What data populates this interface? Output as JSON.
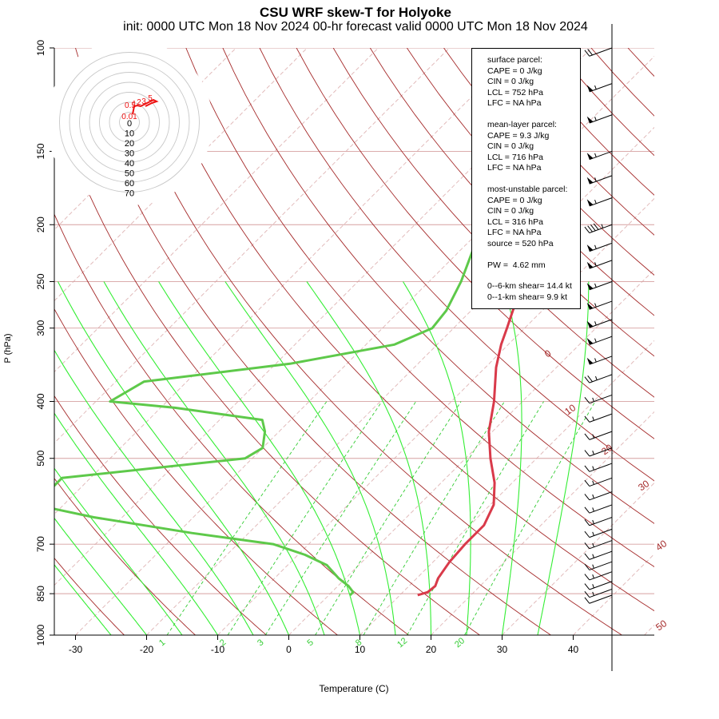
{
  "title": "CSU WRF skew-T for Holyoke",
  "subtitle": "init: 0000 UTC Mon 18 Nov 2024    00-hr forecast valid 0000 UTC Mon 18 Nov 2024",
  "stats": {
    "surface_header": "surface parcel:",
    "surface_cape": "CAPE = 0 J/kg",
    "surface_cin": "CIN = 0 J/kg",
    "surface_lcl": "LCL = 752 hPa",
    "surface_lfc": "LFC = NA hPa",
    "ml_header": "mean-layer parcel:",
    "ml_cape": "CAPE = 9.3 J/kg",
    "ml_cin": "CIN = 0 J/kg",
    "ml_lcl": "LCL = 716 hPa",
    "ml_lfc": "LFC = NA hPa",
    "mu_header": "most-unstable parcel:",
    "mu_cape": "CAPE = 0 J/kg",
    "mu_cin": "CIN = 0 J/kg",
    "mu_lcl": "LCL = 316 hPa",
    "mu_lfc": "LFC = NA hPa",
    "mu_source": "source = 520 hPa",
    "pw": "PW =  4.62 mm",
    "shear6": "0--6-km shear= 14.4 kt",
    "shear1": "0--1-km shear= 9.9 kt"
  },
  "hodograph_ring_labels": [
    "0",
    "10",
    "20",
    "30",
    "40",
    "50",
    "60",
    "70"
  ],
  "hodograph_point_labels": [
    "5",
    "3",
    "2",
    "1",
    "0.5",
    "0.01"
  ],
  "colors": {
    "temperature": "#d93a4a",
    "dewpoint": "#5ec94a",
    "isotherm": "#a52a2a",
    "isobar": "#d6a0a0",
    "dry_adiabat": "#a52a2a",
    "moist_adiabat": "#33ee33",
    "mixing_ratio": "#33cc33",
    "hodograph": "#ee1111",
    "barb": "#000000"
  },
  "chart_data": {
    "type": "line",
    "chart_kind": "skew-T log-P diagram",
    "xlabel": "Temperature (C)",
    "ylabel": "P (hPa)",
    "xlim": [
      -33,
      45
    ],
    "ylim": [
      1000,
      100
    ],
    "y_scale": "log",
    "x_ticks": [
      -30,
      -20,
      -10,
      0,
      10,
      20,
      30,
      40
    ],
    "y_ticks": [
      100,
      150,
      200,
      250,
      300,
      400,
      500,
      700,
      850,
      1000
    ],
    "isotherm_labels": [
      "0",
      "10",
      "20",
      "30",
      "40",
      "50"
    ],
    "mixing_ratio_labels": [
      "1",
      "2",
      "3",
      "5",
      "8",
      "12",
      "20"
    ],
    "series": [
      {
        "name": "temperature",
        "points": [
          [
            855,
            12.5
          ],
          [
            845,
            13.5
          ],
          [
            825,
            13.7
          ],
          [
            800,
            13.0
          ],
          [
            750,
            12.3
          ],
          [
            700,
            12.0
          ],
          [
            650,
            12.0
          ],
          [
            600,
            10.5
          ],
          [
            550,
            7.5
          ],
          [
            500,
            3.5
          ],
          [
            450,
            -0.5
          ],
          [
            400,
            -4.0
          ],
          [
            350,
            -8.5
          ],
          [
            320,
            -11.0
          ],
          [
            300,
            -12.5
          ],
          [
            270,
            -15.0
          ],
          [
            250,
            -17.0
          ],
          [
            230,
            -19.5
          ],
          [
            200,
            -24.0
          ],
          [
            180,
            -27.5
          ],
          [
            160,
            -31.0
          ],
          [
            150,
            -32.5
          ],
          [
            140,
            -34.0
          ],
          [
            130,
            -36.0
          ],
          [
            120,
            -38.5
          ],
          [
            110,
            -42.0
          ]
        ]
      },
      {
        "name": "dewpoint",
        "points": [
          [
            855,
            3.0
          ],
          [
            845,
            3.0
          ],
          [
            825,
            1.5
          ],
          [
            800,
            -1.0
          ],
          [
            760,
            -4.5
          ],
          [
            730,
            -9.0
          ],
          [
            700,
            -15.0
          ],
          [
            670,
            -28.0
          ],
          [
            630,
            -44.0
          ],
          [
            600,
            -54.0
          ],
          [
            540,
            -54.0
          ],
          [
            500,
            -31.0
          ],
          [
            480,
            -30.0
          ],
          [
            450,
            -32.0
          ],
          [
            430,
            -34.0
          ],
          [
            410,
            -48.0
          ],
          [
            400,
            -58.0
          ],
          [
            370,
            -56.0
          ],
          [
            345,
            -38.0
          ],
          [
            320,
            -26.0
          ],
          [
            300,
            -23.0
          ],
          [
            280,
            -23.5
          ],
          [
            250,
            -25.5
          ],
          [
            200,
            -30.5
          ],
          [
            170,
            -35.0
          ],
          [
            150,
            -38.0
          ],
          [
            140,
            -39.0
          ],
          [
            130,
            -41.0
          ],
          [
            120,
            -43.0
          ],
          [
            110,
            -47.0
          ]
        ]
      }
    ],
    "wind_profile": [
      {
        "p": 100,
        "speed_kt": 20
      },
      {
        "p": 115,
        "speed_kt": 55
      },
      {
        "p": 130,
        "speed_kt": 55
      },
      {
        "p": 150,
        "speed_kt": 55
      },
      {
        "p": 165,
        "speed_kt": 55
      },
      {
        "p": 180,
        "speed_kt": 55
      },
      {
        "p": 200,
        "speed_kt": 45
      },
      {
        "p": 215,
        "speed_kt": 55
      },
      {
        "p": 230,
        "speed_kt": 55
      },
      {
        "p": 250,
        "speed_kt": 55
      },
      {
        "p": 270,
        "speed_kt": 55
      },
      {
        "p": 290,
        "speed_kt": 55
      },
      {
        "p": 310,
        "speed_kt": 55
      },
      {
        "p": 335,
        "speed_kt": 55
      },
      {
        "p": 360,
        "speed_kt": 25
      },
      {
        "p": 390,
        "speed_kt": 15
      },
      {
        "p": 420,
        "speed_kt": 15
      },
      {
        "p": 450,
        "speed_kt": 15
      },
      {
        "p": 480,
        "speed_kt": 15
      },
      {
        "p": 510,
        "speed_kt": 15
      },
      {
        "p": 540,
        "speed_kt": 15
      },
      {
        "p": 570,
        "speed_kt": 15
      },
      {
        "p": 600,
        "speed_kt": 15
      },
      {
        "p": 630,
        "speed_kt": 15
      },
      {
        "p": 660,
        "speed_kt": 15
      },
      {
        "p": 690,
        "speed_kt": 15
      },
      {
        "p": 720,
        "speed_kt": 15
      },
      {
        "p": 750,
        "speed_kt": 15
      },
      {
        "p": 780,
        "speed_kt": 15
      },
      {
        "p": 810,
        "speed_kt": 15
      },
      {
        "p": 835,
        "speed_kt": 15
      },
      {
        "p": 855,
        "speed_kt": 10
      }
    ]
  }
}
